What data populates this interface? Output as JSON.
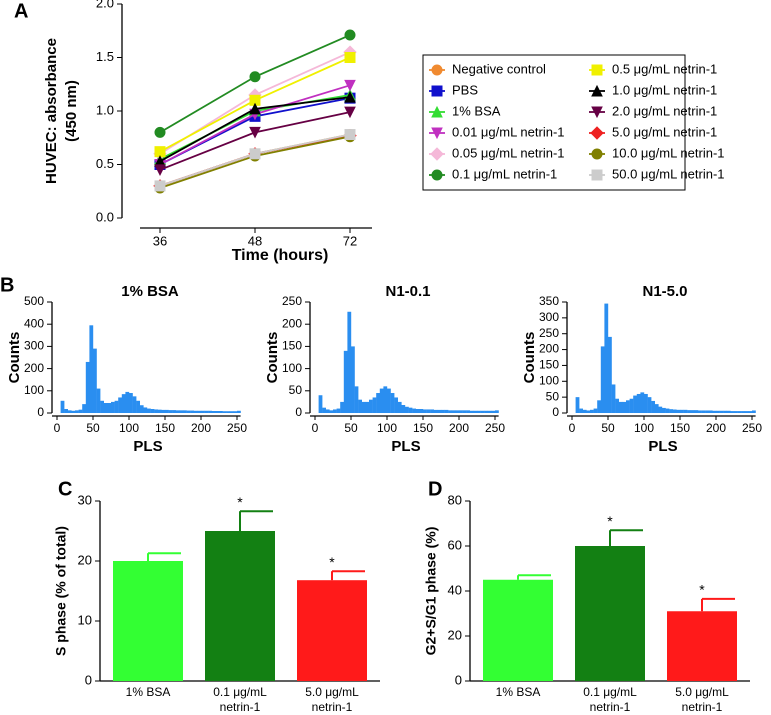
{
  "chart_data": [
    {
      "type": "line",
      "panel_label": "A",
      "xlabel": "Time (hours)",
      "ylabel": [
        "HUVEC: absorbance",
        "(450 nm)"
      ],
      "categories": [
        36,
        48,
        72
      ],
      "ylim": [
        0,
        2
      ],
      "yticks": [
        {
          "value": 0,
          "label": "0.0"
        },
        0.5,
        {
          "value": 1,
          "label": "1.0"
        },
        1.5,
        {
          "value": 2,
          "label": "2.0"
        }
      ],
      "series": [
        {
          "name": "Negative control",
          "color": "#f08a30",
          "marker": "circle",
          "values": [
            0.3,
            0.6,
            0.78
          ]
        },
        {
          "name": "PBS",
          "color": "#1010cc",
          "marker": "square",
          "values": [
            0.5,
            0.95,
            1.12
          ]
        },
        {
          "name": "1% BSA",
          "color": "#33dd33",
          "marker": "triangle",
          "values": [
            0.55,
            1.0,
            1.15
          ]
        },
        {
          "name": "0.01 μg/mL netrin-1",
          "color": "#c030c0",
          "marker": "triangle-down",
          "values": [
            0.5,
            0.97,
            1.24
          ]
        },
        {
          "name": "0.05 μg/mL netrin-1",
          "color": "#f5b8d8",
          "marker": "diamond",
          "values": [
            0.6,
            1.15,
            1.55
          ]
        },
        {
          "name": "0.1 μg/mL netrin-1",
          "color": "#228b22",
          "marker": "circle",
          "values": [
            0.8,
            1.32,
            1.71
          ]
        },
        {
          "name": "0.5 μg/mL netrin-1",
          "color": "#f0f000",
          "marker": "square",
          "values": [
            0.62,
            1.1,
            1.5
          ]
        },
        {
          "name": "1.0 μg/mL netrin-1",
          "color": "#000000",
          "marker": "triangle",
          "values": [
            0.53,
            1.02,
            1.13
          ]
        },
        {
          "name": "2.0 μg/mL netrin-1",
          "color": "#660044",
          "marker": "triangle-down",
          "values": [
            0.45,
            0.8,
            0.99
          ]
        },
        {
          "name": "5.0 μg/mL netrin-1",
          "color": "#ee2222",
          "marker": "diamond",
          "values": [
            0.3,
            0.6,
            0.77
          ]
        },
        {
          "name": "10.0 μg/mL netrin-1",
          "color": "#808000",
          "marker": "circle",
          "values": [
            0.28,
            0.58,
            0.76
          ]
        },
        {
          "name": "50.0 μg/mL netrin-1",
          "color": "#cccccc",
          "marker": "square",
          "values": [
            0.3,
            0.6,
            0.78
          ]
        }
      ]
    },
    {
      "type": "histogram",
      "panel_label": "B",
      "title": "1% BSA",
      "xlabel": "PLS",
      "ylabel": "Counts",
      "color": "#2a8ef0",
      "xlim": [
        0,
        255
      ],
      "xticks": [
        0,
        50,
        100,
        150,
        200,
        250
      ],
      "ylim": [
        0,
        500
      ],
      "yticks": [
        0,
        100,
        200,
        300,
        400,
        500
      ],
      "bins": [
        5,
        10,
        15,
        20,
        25,
        30,
        35,
        40,
        45,
        50,
        55,
        60,
        65,
        70,
        75,
        80,
        85,
        90,
        95,
        100,
        105,
        110,
        115,
        120,
        125,
        130,
        135,
        140,
        145,
        150,
        155,
        160,
        165,
        170,
        175,
        180,
        185,
        190,
        195,
        200,
        205,
        210,
        215,
        220,
        225,
        230,
        235,
        240,
        245,
        250,
        255
      ],
      "values": [
        55,
        18,
        12,
        10,
        12,
        15,
        40,
        230,
        395,
        290,
        110,
        55,
        45,
        45,
        50,
        55,
        70,
        85,
        95,
        90,
        75,
        55,
        35,
        25,
        20,
        18,
        16,
        15,
        14,
        14,
        13,
        13,
        12,
        12,
        12,
        11,
        11,
        10,
        10,
        10,
        10,
        10,
        9,
        9,
        9,
        8,
        8,
        8,
        8,
        10
      ]
    },
    {
      "type": "histogram",
      "title": "N1-0.1",
      "xlabel": "PLS",
      "ylabel": "Counts",
      "color": "#2a8ef0",
      "xlim": [
        0,
        255
      ],
      "xticks": [
        0,
        50,
        100,
        150,
        200,
        250
      ],
      "ylim": [
        0,
        250
      ],
      "yticks": [
        0,
        50,
        100,
        150,
        200,
        250
      ],
      "bins": [
        5,
        10,
        15,
        20,
        25,
        30,
        35,
        40,
        45,
        50,
        55,
        60,
        65,
        70,
        75,
        80,
        85,
        90,
        95,
        100,
        105,
        110,
        115,
        120,
        125,
        130,
        135,
        140,
        145,
        150,
        155,
        160,
        165,
        170,
        175,
        180,
        185,
        190,
        195,
        200,
        205,
        210,
        215,
        220,
        225,
        230,
        235,
        240,
        245,
        250,
        255
      ],
      "values": [
        40,
        12,
        8,
        6,
        8,
        10,
        25,
        140,
        228,
        150,
        60,
        30,
        25,
        25,
        30,
        35,
        45,
        55,
        60,
        55,
        45,
        35,
        25,
        18,
        14,
        12,
        10,
        9,
        9,
        8,
        8,
        8,
        7,
        7,
        7,
        7,
        6,
        6,
        6,
        6,
        6,
        6,
        5,
        5,
        5,
        5,
        5,
        5,
        5,
        6
      ]
    },
    {
      "type": "histogram",
      "title": "N1-5.0",
      "xlabel": "PLS",
      "ylabel": "Counts",
      "color": "#2a8ef0",
      "xlim": [
        0,
        255
      ],
      "xticks": [
        0,
        50,
        100,
        150,
        200,
        250
      ],
      "ylim": [
        0,
        350
      ],
      "yticks": [
        0,
        50,
        100,
        150,
        200,
        250,
        300,
        350
      ],
      "bins": [
        5,
        10,
        15,
        20,
        25,
        30,
        35,
        40,
        45,
        50,
        55,
        60,
        65,
        70,
        75,
        80,
        85,
        90,
        95,
        100,
        105,
        110,
        115,
        120,
        125,
        130,
        135,
        140,
        145,
        150,
        155,
        160,
        165,
        170,
        175,
        180,
        185,
        190,
        195,
        200,
        205,
        210,
        215,
        220,
        225,
        230,
        235,
        240,
        245,
        250,
        255
      ],
      "values": [
        50,
        14,
        10,
        8,
        10,
        14,
        40,
        210,
        345,
        240,
        90,
        45,
        35,
        35,
        40,
        45,
        55,
        60,
        65,
        60,
        50,
        38,
        28,
        20,
        16,
        14,
        12,
        11,
        10,
        10,
        10,
        9,
        9,
        9,
        8,
        8,
        8,
        8,
        7,
        7,
        7,
        7,
        7,
        6,
        6,
        6,
        6,
        6,
        6,
        8
      ]
    },
    {
      "type": "bar",
      "panel_label": "C",
      "ylabel": "S phase (% of total)",
      "categories": [
        [
          "1% BSA"
        ],
        [
          "0.1 μg/mL",
          "netrin-1"
        ],
        [
          "5.0 μg/mL",
          "netrin-1"
        ]
      ],
      "values": [
        20,
        25,
        16.8
      ],
      "errors": [
        1.3,
        3.3,
        1.5
      ],
      "significance": [
        null,
        "*",
        "*"
      ],
      "colors": [
        "#33ff33",
        "#138013",
        "#ff1a1a"
      ],
      "ylim": [
        0,
        30
      ],
      "yticks": [
        0,
        10,
        20,
        30
      ]
    },
    {
      "type": "bar",
      "panel_label": "D",
      "ylabel": "G2+S/G1 phase (%)",
      "categories": [
        [
          "1% BSA"
        ],
        [
          "0.1 μg/mL",
          "netrin-1"
        ],
        [
          "5.0 μg/mL",
          "netrin-1"
        ]
      ],
      "values": [
        45,
        60,
        31
      ],
      "errors": [
        2,
        7,
        5.5
      ],
      "significance": [
        null,
        "*",
        "*"
      ],
      "colors": [
        "#33ff33",
        "#138013",
        "#ff1a1a"
      ],
      "ylim": [
        0,
        80
      ],
      "yticks": [
        0,
        20,
        40,
        60,
        80
      ]
    }
  ]
}
